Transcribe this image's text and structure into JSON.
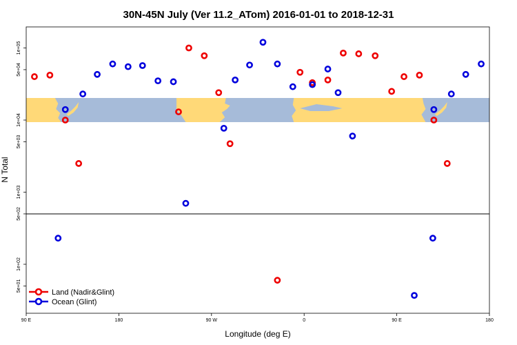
{
  "chart_data": {
    "type": "scatter",
    "title": "30N-45N July (Ver 11.2_ATom)   2016-01-01 to 2018-12-31",
    "xlabel": "Longitude (deg E)",
    "ylabel": "N Total",
    "x_ticks": [
      {
        "value": 90,
        "label": "90 E"
      },
      {
        "value": 180,
        "label": "180"
      },
      {
        "value": 270,
        "label": "90 W"
      },
      {
        "value": 360,
        "label": "0"
      },
      {
        "value": 450,
        "label": "90 E"
      },
      {
        "value": 540,
        "label": "180"
      }
    ],
    "xlim": [
      90,
      540
    ],
    "y_ticks": [
      {
        "value": 50,
        "label": "5e+01"
      },
      {
        "value": 100,
        "label": "1e+02"
      },
      {
        "value": 500,
        "label": "5e+02"
      },
      {
        "value": 1000,
        "label": "1e+03"
      },
      {
        "value": 5000,
        "label": "5e+03"
      },
      {
        "value": 10000,
        "label": "1e+04"
      },
      {
        "value": 50000,
        "label": "5e+04"
      },
      {
        "value": 100000,
        "label": "1e+05"
      }
    ],
    "map_band": {
      "longitude_range": [
        90,
        540
      ]
    },
    "series": [
      {
        "name": "Land (Nadir&Glint)",
        "color": "#ee0000",
        "points": [
          {
            "x": 98,
            "y": 40000
          },
          {
            "x": 113,
            "y": 42000
          },
          {
            "x": 128,
            "y": 10000
          },
          {
            "x": 141,
            "y": 2500
          },
          {
            "x": 238,
            "y": 13000
          },
          {
            "x": 248,
            "y": 100000
          },
          {
            "x": 263,
            "y": 78000
          },
          {
            "x": 277,
            "y": 24000
          },
          {
            "x": 288,
            "y": 4700
          },
          {
            "x": 334,
            "y": 60
          },
          {
            "x": 356,
            "y": 46000
          },
          {
            "x": 368,
            "y": 33000
          },
          {
            "x": 383,
            "y": 36000
          },
          {
            "x": 398,
            "y": 85000
          },
          {
            "x": 413,
            "y": 83000
          },
          {
            "x": 429,
            "y": 78000
          },
          {
            "x": 445,
            "y": 25000
          },
          {
            "x": 457,
            "y": 40000
          },
          {
            "x": 472,
            "y": 42000
          },
          {
            "x": 486,
            "y": 10000
          },
          {
            "x": 499,
            "y": 2500
          }
        ]
      },
      {
        "name": "Ocean (Glint)",
        "color": "#0000dd",
        "points": [
          {
            "x": 121,
            "y": 230
          },
          {
            "x": 128,
            "y": 14000
          },
          {
            "x": 145,
            "y": 23000
          },
          {
            "x": 159,
            "y": 43000
          },
          {
            "x": 174,
            "y": 60000
          },
          {
            "x": 189,
            "y": 55000
          },
          {
            "x": 203,
            "y": 57000
          },
          {
            "x": 218,
            "y": 35000
          },
          {
            "x": 233,
            "y": 34000
          },
          {
            "x": 245,
            "y": 700
          },
          {
            "x": 282,
            "y": 7700
          },
          {
            "x": 293,
            "y": 36000
          },
          {
            "x": 307,
            "y": 58000
          },
          {
            "x": 320,
            "y": 120000
          },
          {
            "x": 334,
            "y": 60000
          },
          {
            "x": 349,
            "y": 29000
          },
          {
            "x": 368,
            "y": 31000
          },
          {
            "x": 383,
            "y": 51000
          },
          {
            "x": 393,
            "y": 24000
          },
          {
            "x": 407,
            "y": 6000
          },
          {
            "x": 467,
            "y": 37
          },
          {
            "x": 485,
            "y": 230
          },
          {
            "x": 486,
            "y": 14000
          },
          {
            "x": 503,
            "y": 23000
          },
          {
            "x": 517,
            "y": 43000
          },
          {
            "x": 532,
            "y": 60000
          }
        ]
      }
    ]
  }
}
